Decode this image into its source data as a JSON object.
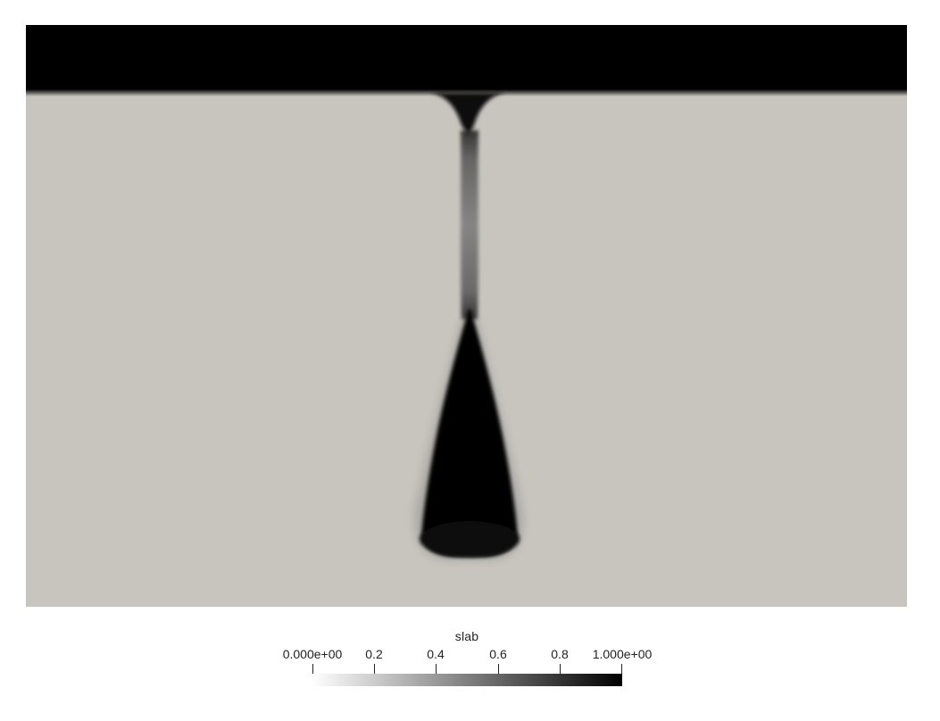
{
  "viewer": {
    "background_color": "#ffffff",
    "domain_color": "#c8c5be",
    "slab_color": "#000000"
  },
  "scalar_bar": {
    "title": "slab",
    "ticks": [
      {
        "value": 0.0,
        "label": "0.000e+00"
      },
      {
        "value": 0.2,
        "label": "0.2"
      },
      {
        "value": 0.4,
        "label": "0.4"
      },
      {
        "value": 0.6,
        "label": "0.6"
      },
      {
        "value": 0.8,
        "label": "0.8"
      },
      {
        "value": 1.0,
        "label": "1.000e+00"
      }
    ],
    "range": [
      0,
      1
    ],
    "color_low": "#ffffff",
    "color_high": "#000000"
  }
}
